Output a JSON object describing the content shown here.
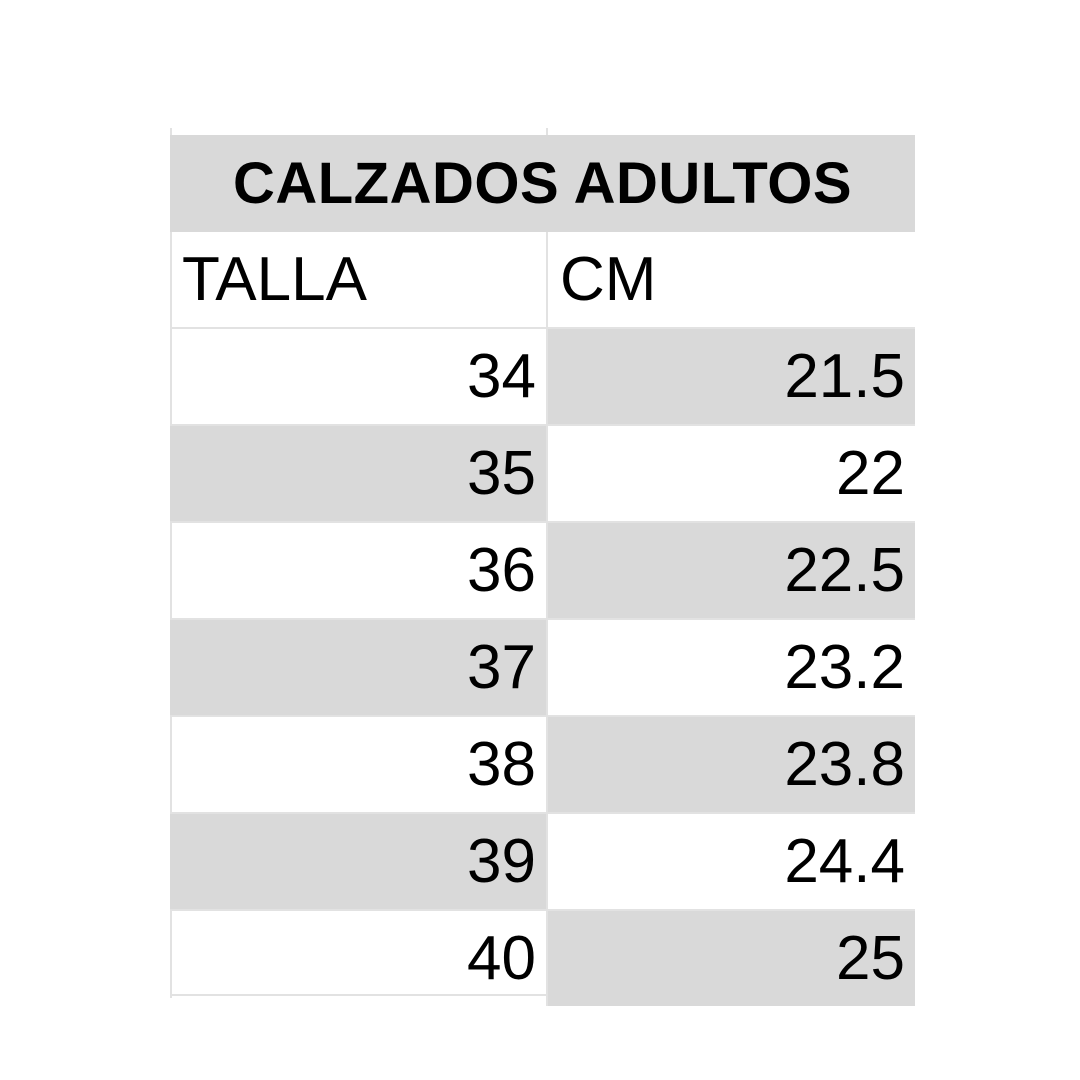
{
  "table": {
    "title": "CALZADOS ADULTOS",
    "headers": [
      "TALLA",
      "CM"
    ],
    "rows": [
      {
        "talla": "34",
        "cm": "21.5"
      },
      {
        "talla": "35",
        "cm": "22"
      },
      {
        "talla": "36",
        "cm": "22.5"
      },
      {
        "talla": "37",
        "cm": "23.2"
      },
      {
        "talla": "38",
        "cm": "23.8"
      },
      {
        "talla": "39",
        "cm": "24.4"
      },
      {
        "talla": "40",
        "cm": "25"
      }
    ],
    "shade_color": "#d9d9d9"
  }
}
